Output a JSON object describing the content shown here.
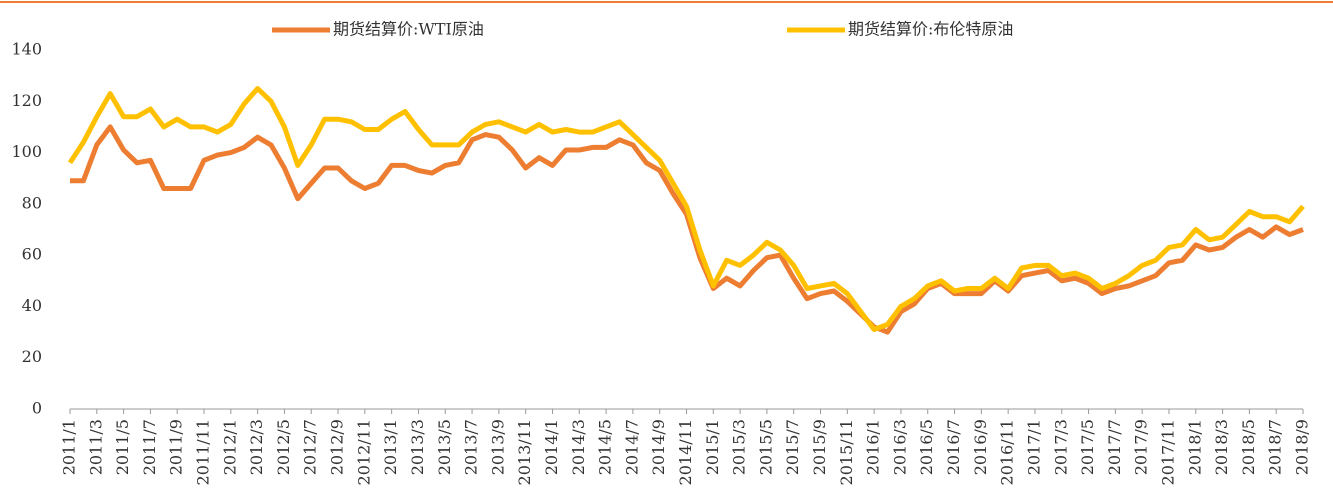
{
  "chart_data": {
    "type": "line",
    "categories": [
      "2011/1",
      null,
      "2011/3",
      null,
      "2011/5",
      null,
      "2011/7",
      null,
      "2011/9",
      null,
      "2011/11",
      null,
      "2012/1",
      null,
      "2012/3",
      null,
      "2012/5",
      null,
      "2012/7",
      null,
      "2012/9",
      null,
      "2012/11",
      null,
      "2013/1",
      null,
      "2013/3",
      null,
      "2013/5",
      null,
      "2013/7",
      null,
      "2013/9",
      null,
      "2013/11",
      null,
      "2014/1",
      null,
      "2014/3",
      null,
      "2014/5",
      null,
      "2014/7",
      null,
      "2014/9",
      null,
      "2014/11",
      null,
      "2015/1",
      null,
      "2015/3",
      null,
      "2015/5",
      null,
      "2015/7",
      null,
      "2015/9",
      null,
      "2015/11",
      null,
      "2016/1",
      null,
      "2016/3",
      null,
      "2016/5",
      null,
      "2016/7",
      null,
      "2016/9",
      null,
      "2016/11",
      null,
      "2017/1",
      null,
      "2017/3",
      null,
      "2017/5",
      null,
      "2017/7",
      null,
      "2017/9",
      null,
      "2017/11",
      null,
      "2018/1",
      null,
      "2018/3",
      null,
      "2018/5",
      null,
      "2018/7",
      null,
      "2018/9"
    ],
    "series": [
      {
        "name": "期货结算价:WTI原油",
        "color": "#ed7d31",
        "values": [
          89,
          89,
          103,
          110,
          101,
          96,
          97,
          86,
          86,
          86,
          97,
          99,
          100,
          102,
          106,
          103,
          94,
          82,
          88,
          94,
          94,
          89,
          86,
          88,
          95,
          95,
          93,
          92,
          95,
          96,
          105,
          107,
          106,
          101,
          94,
          98,
          95,
          101,
          101,
          102,
          102,
          105,
          103,
          96,
          93,
          84,
          76,
          59,
          47,
          51,
          48,
          54,
          59,
          60,
          51,
          43,
          45,
          46,
          42,
          37,
          32,
          30,
          38,
          41,
          47,
          49,
          45,
          45,
          45,
          50,
          46,
          52,
          53,
          54,
          50,
          51,
          49,
          45,
          47,
          48,
          50,
          52,
          57,
          58,
          64,
          62,
          63,
          67,
          70,
          67,
          71,
          68,
          70
        ]
      },
      {
        "name": "期货结算价:布伦特原油",
        "color": "#ffc000",
        "values": [
          96,
          104,
          114,
          123,
          114,
          114,
          117,
          110,
          113,
          110,
          110,
          108,
          111,
          119,
          125,
          120,
          110,
          95,
          103,
          113,
          113,
          112,
          109,
          109,
          113,
          116,
          109,
          103,
          103,
          103,
          108,
          111,
          112,
          110,
          108,
          111,
          108,
          109,
          108,
          108,
          110,
          112,
          107,
          102,
          97,
          88,
          79,
          62,
          48,
          58,
          56,
          60,
          65,
          62,
          56,
          47,
          48,
          49,
          45,
          38,
          31,
          33,
          40,
          43,
          48,
          50,
          46,
          47,
          47,
          51,
          47,
          55,
          56,
          56,
          52,
          53,
          51,
          47,
          49,
          52,
          56,
          58,
          63,
          64,
          70,
          66,
          67,
          72,
          77,
          75,
          75,
          73,
          79
        ]
      }
    ],
    "ylim": [
      0,
      140
    ],
    "yticks": [
      0,
      20,
      40,
      60,
      80,
      100,
      120,
      140
    ],
    "grid": false,
    "legend": "top"
  }
}
